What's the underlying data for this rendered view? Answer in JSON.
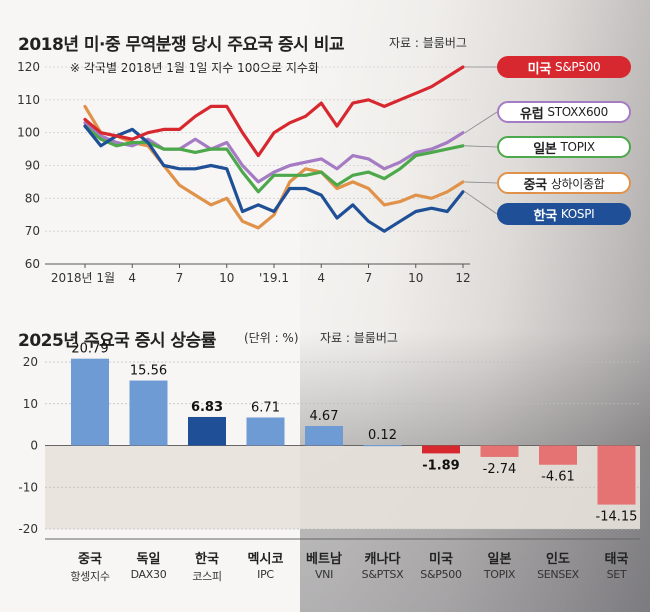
{
  "top_title": "2018년 미·중 무역분쟁 당시 주요국 증시 비교",
  "top_source": "자료 : 블룸버그",
  "top_note": "※ 각국별 2018년 1월 1일 지수 100으로 지수화",
  "bottom_title": "2025년 주요국 증시 상승률",
  "bottom_unit": "(단위 : %)",
  "bottom_source": "자료 : 블룸버그",
  "colors": {
    "usa": "#d7282f",
    "europe": "#a57bc4",
    "japan": "#4ca84a",
    "china": "#e0924a",
    "korea": "#1f4f96",
    "bar_pos": "#6e9bd4",
    "bar_hi": "#1f4f96",
    "bar_neg": "#e57373",
    "neg_band": "#e8e2db"
  },
  "chart_data": [
    {
      "type": "line",
      "title": "2018년 미·중 무역분쟁 당시 주요국 증시 비교",
      "ylim": [
        60,
        120
      ],
      "yticks": [
        60,
        70,
        80,
        90,
        100,
        110,
        120
      ],
      "xticks": [
        "2018년 1월",
        "4",
        "7",
        "10",
        "'19.1",
        "4",
        "7",
        "10",
        "12"
      ],
      "n_points": 25,
      "series": [
        {
          "key": "usa",
          "country": "미국",
          "index": "S&P500",
          "values": [
            104,
            100,
            99,
            98,
            100,
            101,
            101,
            105,
            108,
            108,
            100,
            93,
            100,
            103,
            105,
            109,
            102,
            109,
            110,
            108,
            110,
            112,
            114,
            117,
            120
          ]
        },
        {
          "key": "europe",
          "country": "유럽",
          "index": "STOXX600",
          "values": [
            103,
            99,
            97,
            96,
            98,
            95,
            95,
            98,
            95,
            97,
            90,
            85,
            88,
            90,
            91,
            92,
            89,
            93,
            92,
            89,
            91,
            94,
            95,
            97,
            100
          ]
        },
        {
          "key": "japan",
          "country": "일본",
          "index": "TOPIX",
          "values": [
            102,
            98,
            96,
            97,
            97,
            95,
            95,
            94,
            95,
            95,
            88,
            82,
            87,
            87,
            87,
            88,
            84,
            87,
            88,
            86,
            89,
            93,
            94,
            95,
            96
          ]
        },
        {
          "key": "china",
          "country": "중국",
          "index": "상하이종합",
          "values": [
            108,
            100,
            99,
            97,
            96,
            90,
            84,
            81,
            78,
            80,
            73,
            71,
            75,
            85,
            89,
            88,
            83,
            85,
            83,
            78,
            79,
            81,
            80,
            82,
            85
          ]
        },
        {
          "key": "korea",
          "country": "한국",
          "index": "KOSPI",
          "values": [
            102,
            96,
            99,
            101,
            97,
            90,
            89,
            89,
            90,
            89,
            76,
            78,
            76,
            83,
            83,
            81,
            74,
            78,
            73,
            70,
            73,
            76,
            77,
            76,
            82
          ]
        }
      ]
    },
    {
      "type": "bar",
      "title": "2025년 주요국 증시 상승률",
      "ylim": [
        -20,
        20
      ],
      "yticks": [
        20,
        10,
        0,
        -10,
        -20
      ],
      "categories": [
        "중국",
        "독일",
        "한국",
        "멕시코",
        "베트남",
        "캐나다",
        "미국",
        "일본",
        "인도",
        "태국"
      ],
      "index_names": [
        "항셍지수",
        "DAX30",
        "코스피",
        "IPC",
        "VNI",
        "S&PTSX",
        "S&P500",
        "TOPIX",
        "SENSEX",
        "SET"
      ],
      "values": [
        20.79,
        15.56,
        6.83,
        6.71,
        4.67,
        0.12,
        -1.89,
        -2.74,
        -4.61,
        -14.15
      ],
      "value_labels": [
        "20.79",
        "15.56",
        "6.83",
        "6.71",
        "4.67",
        "0.12",
        "-1.89",
        "-2.74",
        "-4.61",
        "-14.15"
      ],
      "highlight": [
        "한국",
        "미국"
      ]
    }
  ]
}
